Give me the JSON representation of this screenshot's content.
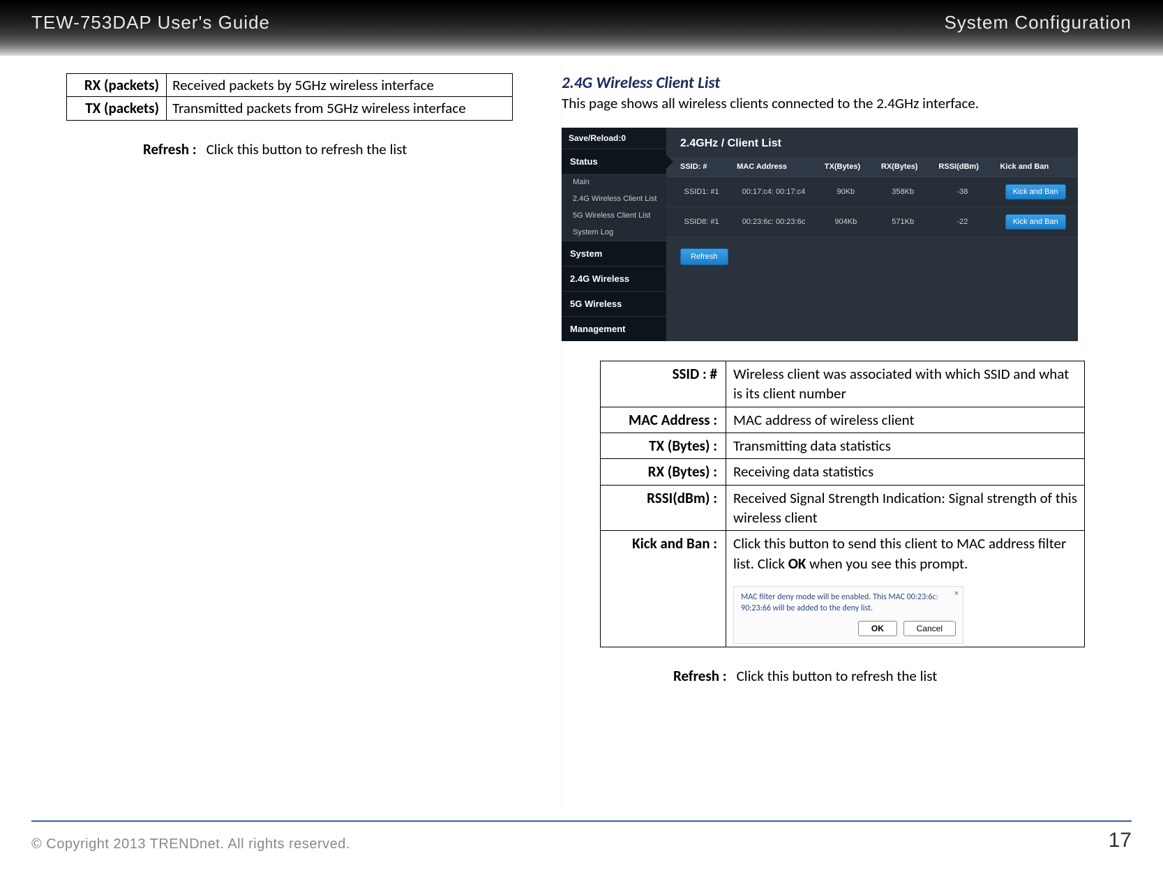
{
  "header": {
    "left": "TEW-753DAP User's Guide",
    "right": "System Configuration"
  },
  "left_column": {
    "packet_table": [
      {
        "label": "RX (packets)",
        "desc": "Received packets by 5GHz wireless interface"
      },
      {
        "label": "TX (packets)",
        "desc": "Transmitted packets from 5GHz wireless interface"
      }
    ],
    "refresh": {
      "label": "Refresh :",
      "desc": "Click this button to refresh the list"
    }
  },
  "right_column": {
    "title": "2.4G Wireless Client List",
    "desc": "This page shows all wireless clients connected to the 2.4GHz interface.",
    "router": {
      "save_reload": "Save/Reload:0",
      "sidebar": {
        "status": "Status",
        "status_items": [
          "Main",
          "2.4G Wireless Client List",
          "5G Wireless Client List",
          "System Log"
        ],
        "system": "System",
        "w24": "2.4G Wireless",
        "w5": "5G Wireless",
        "mgmt": "Management"
      },
      "panel_title": "2.4GHz / Client List",
      "columns": [
        "SSID: #",
        "MAC Address",
        "TX(Bytes)",
        "RX(Bytes)",
        "RSSI(dBm)",
        "Kick and Ban"
      ],
      "rows": [
        {
          "ssid": "SSID1: #1",
          "mac": "00:17:c4: 00:17:c4",
          "tx": "90Kb",
          "rx": "358Kb",
          "rssi": "-38",
          "btn": "Kick and Ban"
        },
        {
          "ssid": "SSID8: #1",
          "mac": "00:23:6c: 00:23:6c",
          "tx": "904Kb",
          "rx": "571Kb",
          "rssi": "-22",
          "btn": "Kick and Ban"
        }
      ],
      "refresh_btn": "Refresh"
    },
    "def_table": [
      {
        "label": "SSID : #",
        "desc": "Wireless client was associated with which SSID and what is its client number"
      },
      {
        "label": "MAC Address :",
        "desc": "MAC address of wireless client"
      },
      {
        "label": "TX (Bytes) :",
        "desc": "Transmitting data statistics"
      },
      {
        "label": "RX (Bytes) :",
        "desc": "Receiving data statistics"
      },
      {
        "label": "RSSI(dBm) :",
        "desc": "Received Signal Strength Indication: Signal strength of this wireless client"
      }
    ],
    "kick_row": {
      "label": "Kick and Ban :",
      "desc_prefix": "Click this button to send this client to MAC address filter list. Click ",
      "desc_bold": "OK",
      "desc_suffix": " when you see this prompt.",
      "prompt": {
        "msg": "MAC filter deny mode will be enabled. This MAC 00:23:6c: 90:23:66 will be added to the deny list.",
        "ok": "OK",
        "cancel": "Cancel"
      }
    },
    "refresh": {
      "label": "Refresh :",
      "desc": "Click this button to refresh the list"
    }
  },
  "footer": {
    "copyright": "© Copyright 2013 TRENDnet. All rights reserved.",
    "page": "17"
  }
}
